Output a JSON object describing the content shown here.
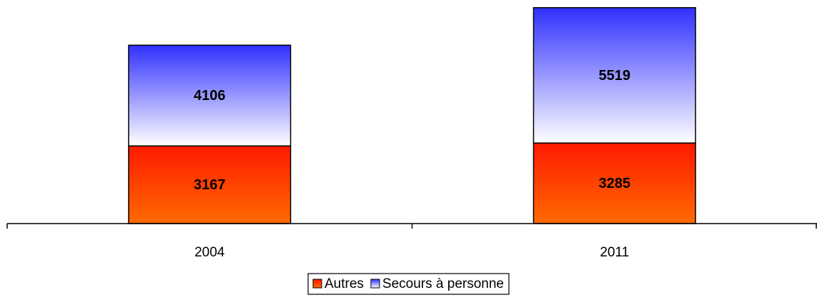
{
  "chart_data": {
    "type": "stacked_bar",
    "categories": [
      "2004",
      "2011"
    ],
    "series": [
      {
        "name": "Autres",
        "color": "#ff1a00",
        "gradient_to": "#ff6a00",
        "values": [
          3167,
          3285
        ]
      },
      {
        "name": "Secours à personne",
        "color": "#3030ff",
        "gradient_to": "#ffffff",
        "values": [
          4106,
          5519
        ]
      }
    ],
    "ylim": [
      0,
      9000
    ],
    "legend": "bottom"
  }
}
